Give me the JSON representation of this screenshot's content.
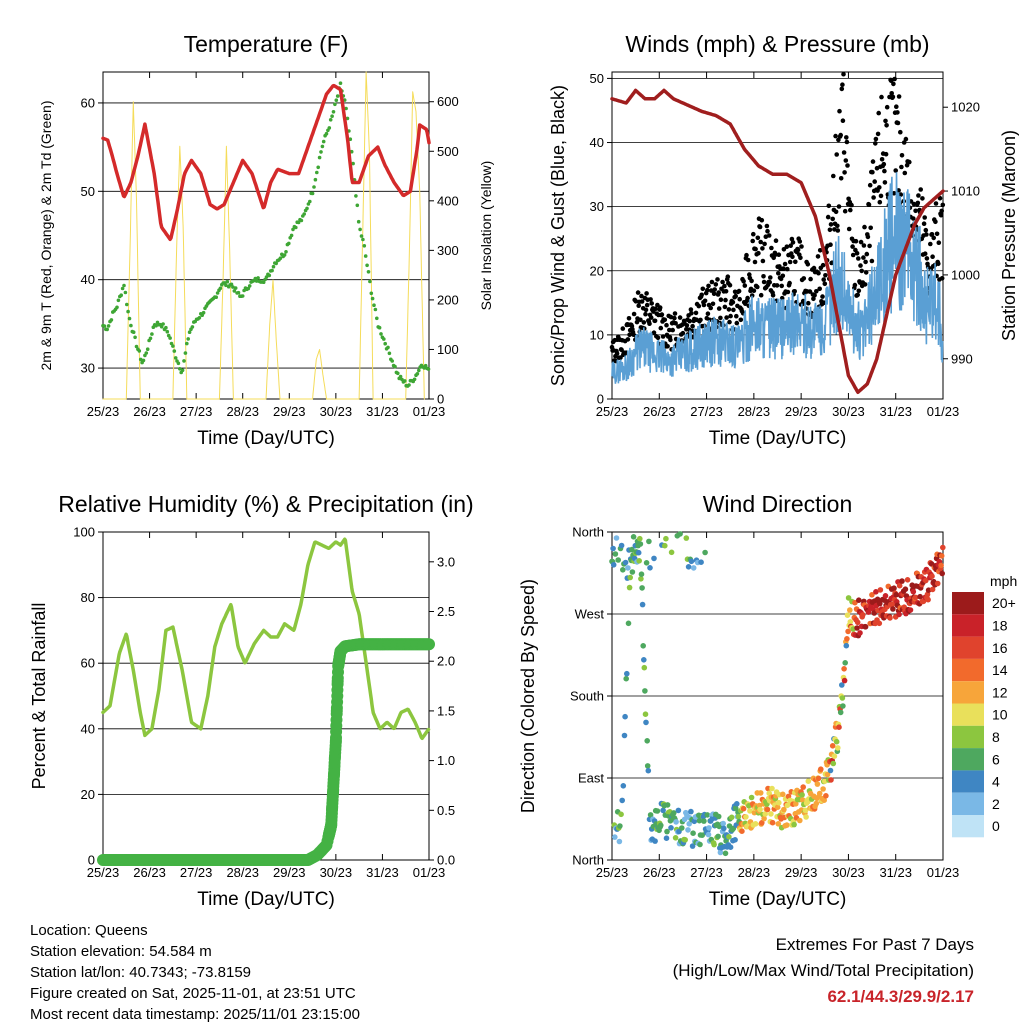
{
  "chart_data": [
    {
      "type": "line",
      "title": "Temperature (F)",
      "xlabel": "Time (Day/UTC)",
      "ylabel": "2m & 9m T (Red, Orange) & 2m Td (Green)",
      "ylabel_right": "Solar Insolation (Yellow)",
      "x_ticks": [
        "25/23",
        "26/23",
        "27/23",
        "28/23",
        "29/23",
        "30/23",
        "31/23",
        "01/23"
      ],
      "xlim": [
        0,
        7
      ],
      "ylim": [
        26.5,
        63.5
      ],
      "y_ticks": [
        30,
        40,
        50,
        60
      ],
      "y2lim": [
        0,
        660
      ],
      "y2_ticks": [
        0,
        100,
        200,
        300,
        400,
        500,
        600
      ],
      "series": [
        {
          "name": "2m T",
          "color": "#d42a2a",
          "x": [
            0,
            0.1,
            0.2,
            0.3,
            0.45,
            0.6,
            0.75,
            0.9,
            1.1,
            1.25,
            1.45,
            1.6,
            1.75,
            1.9,
            2.1,
            2.3,
            2.45,
            2.6,
            2.8,
            3.0,
            3.2,
            3.45,
            3.6,
            3.75,
            3.85,
            4.0,
            4.2,
            4.4,
            4.6,
            4.8,
            4.95,
            5.1,
            5.25,
            5.35,
            5.5,
            5.7,
            5.9,
            6.05,
            6.25,
            6.45,
            6.6,
            6.75,
            6.8,
            6.95,
            7.0
          ],
          "values": [
            56,
            55.8,
            54,
            52,
            49.3,
            51,
            54,
            57.6,
            52,
            46,
            44.5,
            48,
            52,
            53.5,
            52,
            48.5,
            48,
            48.5,
            51,
            53.5,
            52,
            48,
            51,
            52.5,
            52.3,
            52,
            52,
            55,
            58,
            61,
            62,
            61.5,
            56,
            51,
            51,
            54,
            55,
            53,
            51,
            49.5,
            50,
            55,
            57.5,
            57,
            55.5
          ]
        },
        {
          "name": "2m Td",
          "color": "#3ea634",
          "x": [
            0,
            0.1,
            0.2,
            0.3,
            0.45,
            0.55,
            0.7,
            0.85,
            1.0,
            1.1,
            1.25,
            1.4,
            1.55,
            1.7,
            1.85,
            2.0,
            2.1,
            2.25,
            2.4,
            2.55,
            2.75,
            2.95,
            3.15,
            3.3,
            3.5,
            3.7,
            3.9,
            4.1,
            4.3,
            4.5,
            4.7,
            4.9,
            5.0,
            5.1,
            5.2,
            5.35,
            5.5,
            5.6,
            5.75,
            5.9,
            6.05,
            6.2,
            6.35,
            6.55,
            6.7,
            6.85,
            7.0
          ],
          "values": [
            34.8,
            34.5,
            36,
            37,
            39.5,
            36,
            33,
            30.5,
            33,
            35,
            35,
            34,
            31.5,
            29.5,
            34,
            35.5,
            36,
            37,
            38,
            39.5,
            39.5,
            38,
            39.5,
            40,
            40,
            42,
            43,
            46,
            47,
            50,
            55,
            58,
            60,
            62,
            60,
            54,
            46,
            44,
            39,
            35,
            33,
            31,
            29,
            28,
            29,
            30.5,
            29.8
          ]
        },
        {
          "name": "Solar Insolation",
          "color": "#f5dc5a",
          "axis": "right",
          "x": [
            0,
            0.5,
            0.58,
            0.65,
            0.72,
            0.8,
            1.5,
            1.58,
            1.65,
            1.72,
            1.8,
            2.5,
            2.58,
            2.65,
            2.72,
            2.8,
            3.5,
            3.58,
            3.65,
            3.72,
            3.8,
            4.5,
            4.58,
            4.65,
            4.72,
            4.8,
            5.5,
            5.58,
            5.65,
            5.72,
            5.8,
            6.5,
            6.58,
            6.65,
            6.72,
            6.8,
            6.9
          ],
          "values": [
            0,
            0,
            300,
            600,
            400,
            0,
            0,
            300,
            510,
            350,
            0,
            0,
            250,
            510,
            300,
            0,
            0,
            150,
            240,
            120,
            0,
            0,
            80,
            100,
            50,
            0,
            0,
            350,
            660,
            500,
            0,
            0,
            300,
            620,
            580,
            420,
            0
          ]
        }
      ]
    },
    {
      "type": "scatter",
      "title": "Winds (mph) & Pressure (mb)",
      "xlabel": "Time (Day/UTC)",
      "ylabel": "Sonic/Prop Wind & Gust (Blue, Black)",
      "ylabel_right": "Station Pressure (Maroon)",
      "x_ticks": [
        "25/23",
        "26/23",
        "27/23",
        "28/23",
        "29/23",
        "30/23",
        "31/23",
        "01/23"
      ],
      "xlim": [
        0,
        7
      ],
      "ylim": [
        0,
        51
      ],
      "y_ticks": [
        0,
        10,
        20,
        30,
        40,
        50
      ],
      "y2lim": [
        985.2,
        1024.2
      ],
      "y2_ticks": [
        990,
        1000,
        1010,
        1020
      ],
      "series": [
        {
          "name": "Gust",
          "color": "#000000",
          "x": [
            0,
            0.3,
            0.6,
            0.9,
            1.2,
            1.5,
            1.8,
            2.1,
            2.4,
            2.7,
            3.0,
            3.3,
            3.6,
            3.9,
            4.2,
            4.5,
            4.7,
            4.9,
            5.1,
            5.3,
            5.5,
            5.7,
            5.9,
            6.1,
            6.3,
            6.5,
            6.7,
            6.9,
            7.0
          ],
          "values": [
            7,
            9,
            14,
            12,
            10,
            11,
            13,
            14,
            15,
            13,
            22,
            21,
            18,
            20,
            16,
            19,
            30,
            41,
            20,
            19,
            28,
            37,
            40,
            36,
            30,
            27,
            20,
            25,
            24
          ]
        },
        {
          "name": "Wind",
          "color": "#5a9fd4",
          "x": [
            0,
            0.3,
            0.6,
            0.9,
            1.2,
            1.5,
            1.8,
            2.1,
            2.4,
            2.7,
            3.0,
            3.3,
            3.6,
            3.9,
            4.2,
            4.5,
            4.7,
            4.9,
            5.1,
            5.3,
            5.5,
            5.7,
            5.9,
            6.1,
            6.3,
            6.5,
            6.7,
            6.9,
            7.0
          ],
          "values": [
            4,
            5,
            8,
            7,
            6,
            7,
            8,
            9,
            9,
            8,
            12,
            11,
            11,
            12,
            11,
            11,
            18,
            17,
            12,
            10,
            15,
            20,
            24,
            25,
            22,
            19,
            14,
            15,
            7
          ]
        },
        {
          "name": "Station Pressure",
          "color": "#a01e1e",
          "axis": "right",
          "x": [
            0,
            0.3,
            0.5,
            0.7,
            0.9,
            1.1,
            1.3,
            1.5,
            1.7,
            1.9,
            2.2,
            2.5,
            2.8,
            3.1,
            3.4,
            3.7,
            4.0,
            4.3,
            4.6,
            4.8,
            5.0,
            5.2,
            5.4,
            5.6,
            5.8,
            6.0,
            6.2,
            6.4,
            6.6,
            6.8,
            7.0
          ],
          "values": [
            1021,
            1020.5,
            1022,
            1021,
            1021,
            1022,
            1021,
            1020.5,
            1020,
            1019.5,
            1019,
            1018,
            1015,
            1013,
            1012,
            1012,
            1011,
            1007,
            1000,
            994,
            988,
            986,
            987,
            990,
            995,
            1000,
            1003,
            1006,
            1008,
            1009,
            1010
          ]
        }
      ]
    },
    {
      "type": "line",
      "title": "Relative Humidity (%) & Precipitation (in)",
      "xlabel": "Time (Day/UTC)",
      "ylabel": "Percent & Total Rainfall",
      "x_ticks": [
        "25/23",
        "26/23",
        "27/23",
        "28/23",
        "29/23",
        "30/23",
        "31/23",
        "01/23"
      ],
      "xlim": [
        0,
        7
      ],
      "ylim": [
        0,
        100
      ],
      "y_ticks": [
        0,
        20,
        40,
        60,
        80,
        100
      ],
      "y2lim": [
        0,
        3.3
      ],
      "y2_ticks": [
        "0.0",
        "0.5",
        "1.0",
        "1.5",
        "2.0",
        "2.5",
        "3.0"
      ],
      "series": [
        {
          "name": "Relative Humidity",
          "color": "#8cc63f",
          "x": [
            0,
            0.15,
            0.35,
            0.5,
            0.65,
            0.8,
            0.9,
            1.05,
            1.2,
            1.35,
            1.5,
            1.7,
            1.9,
            2.1,
            2.25,
            2.4,
            2.55,
            2.75,
            2.9,
            3.05,
            3.25,
            3.45,
            3.6,
            3.75,
            3.9,
            4.1,
            4.25,
            4.4,
            4.55,
            4.7,
            4.85,
            5.0,
            5.1,
            5.2,
            5.35,
            5.5,
            5.65,
            5.8,
            5.95,
            6.1,
            6.25,
            6.4,
            6.55,
            6.7,
            6.85,
            7.0
          ],
          "values": [
            45,
            47,
            63,
            69,
            58,
            45,
            38,
            40,
            52,
            70,
            71,
            58,
            42,
            40,
            50,
            65,
            72,
            78,
            65,
            60,
            66,
            70,
            68,
            68,
            72,
            70,
            78,
            90,
            97,
            96,
            95,
            97,
            96,
            98,
            82,
            75,
            60,
            45,
            40,
            42,
            40,
            45,
            46,
            42,
            37,
            40
          ]
        },
        {
          "name": "Total Precipitation",
          "color": "#44b244",
          "axis": "right",
          "x": [
            0,
            4.4,
            4.6,
            4.8,
            4.9,
            5.0,
            5.05,
            5.1,
            5.2,
            5.5,
            6.0,
            7.0
          ],
          "values": [
            0,
            0,
            0.05,
            0.15,
            0.35,
            1.2,
            1.95,
            2.1,
            2.15,
            2.17,
            2.17,
            2.17
          ]
        }
      ]
    },
    {
      "type": "scatter",
      "title": "Wind Direction",
      "xlabel": "Time (Day/UTC)",
      "ylabel": "Direction (Colored By Speed)",
      "x_ticks": [
        "25/23",
        "26/23",
        "27/23",
        "28/23",
        "29/23",
        "30/23",
        "31/23",
        "01/23"
      ],
      "xlim": [
        0,
        7
      ],
      "ylim": [
        0,
        360
      ],
      "y_ticks": [
        "North",
        "East",
        "South",
        "West",
        "North"
      ],
      "legend_title": "mph",
      "legend_labels": [
        "20+",
        "18",
        "16",
        "14",
        "12",
        "10",
        "8",
        "6",
        "4",
        "2",
        "0"
      ],
      "legend_colors": [
        "#9c1b1b",
        "#c92229",
        "#e0432d",
        "#f26a2c",
        "#f7a53a",
        "#e9e05b",
        "#8cc63f",
        "#4ea85f",
        "#3f86c3",
        "#7ab8e6",
        "#bfe3f6"
      ],
      "series": [
        {
          "name": "Direction",
          "color": "#3f86c3",
          "x": [
            0,
            0.2,
            0.4,
            0.6,
            0.8,
            1.0,
            1.2,
            1.4,
            1.6,
            1.8,
            2.0,
            2.2,
            2.4,
            2.6,
            2.8,
            3.0,
            3.2,
            3.4,
            3.6,
            3.8,
            4.0,
            4.2,
            4.4,
            4.5,
            4.6,
            4.7,
            4.8,
            4.9,
            5.0,
            5.2,
            5.4,
            5.6,
            5.8,
            6.0,
            6.2,
            6.4,
            6.6,
            6.8,
            6.95
          ],
          "values": [
            30,
            35,
            330,
            340,
            35,
            45,
            40,
            38,
            35,
            30,
            40,
            30,
            25,
            40,
            50,
            55,
            58,
            60,
            52,
            55,
            60,
            70,
            80,
            85,
            100,
            120,
            150,
            190,
            270,
            265,
            270,
            275,
            280,
            285,
            290,
            295,
            300,
            310,
            325
          ]
        }
      ]
    }
  ],
  "info": {
    "location": "Location: Queens",
    "elevation": "Station elevation: 54.584 m",
    "latlon": "Station lat/lon: 40.7343; -73.8159",
    "created": "Figure created on Sat, 2025-11-01, at 23:51 UTC",
    "recent": "Most recent data timestamp: 2025/11/01 23:15:00"
  },
  "extremes": {
    "title": "Extremes For Past 7 Days",
    "subtitle": "(High/Low/Max Wind/Total Precipitation)",
    "values": "62.1/44.3/29.9/2.17"
  }
}
